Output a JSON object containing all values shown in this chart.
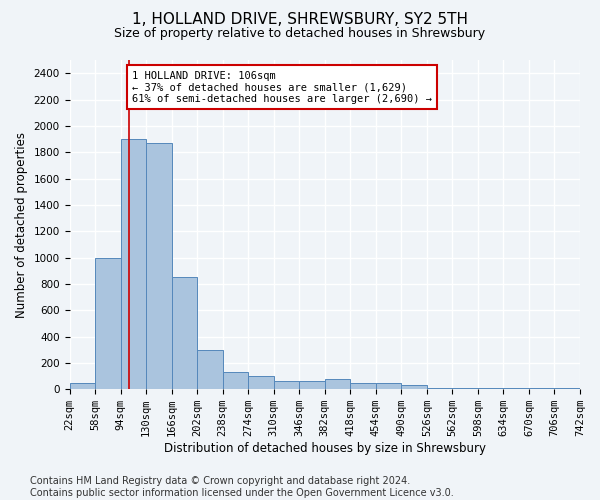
{
  "title": "1, HOLLAND DRIVE, SHREWSBURY, SY2 5TH",
  "subtitle": "Size of property relative to detached houses in Shrewsbury",
  "xlabel": "Distribution of detached houses by size in Shrewsbury",
  "ylabel": "Number of detached properties",
  "footnote": "Contains HM Land Registry data © Crown copyright and database right 2024.\nContains public sector information licensed under the Open Government Licence v3.0.",
  "bin_edges": [
    22,
    58,
    94,
    130,
    166,
    202,
    238,
    274,
    310,
    346,
    382,
    418,
    454,
    490,
    526,
    562,
    598,
    634,
    670,
    706,
    742
  ],
  "bar_heights": [
    50,
    1000,
    1900,
    1870,
    850,
    300,
    130,
    100,
    60,
    60,
    75,
    50,
    50,
    30,
    10,
    10,
    10,
    10,
    10,
    10
  ],
  "bar_color": "#aac4de",
  "bar_edge_color": "#5588bb",
  "property_size": 106,
  "property_line_color": "#cc0000",
  "annotation_text": "1 HOLLAND DRIVE: 106sqm\n← 37% of detached houses are smaller (1,629)\n61% of semi-detached houses are larger (2,690) →",
  "annotation_box_color": "#ffffff",
  "annotation_box_edge_color": "#cc0000",
  "ylim_max": 2500,
  "yticks": [
    0,
    200,
    400,
    600,
    800,
    1000,
    1200,
    1400,
    1600,
    1800,
    2000,
    2200,
    2400
  ],
  "background_color": "#f0f4f8",
  "plot_bg_color": "#f0f4f8",
  "grid_color": "#ffffff",
  "title_fontsize": 11,
  "subtitle_fontsize": 9,
  "label_fontsize": 8.5,
  "tick_fontsize": 7.5,
  "footnote_fontsize": 7
}
